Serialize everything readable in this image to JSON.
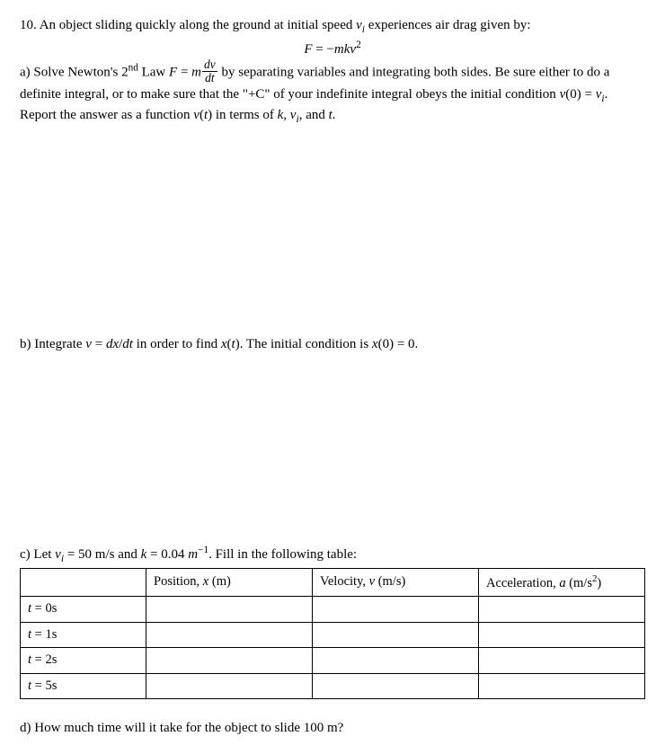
{
  "problem": {
    "number": "10.",
    "intro_html": "An object sliding quickly along the ground at initial speed <span class='ital'>v<sub>i</sub></span> experiences air drag given by:",
    "equation_html": "<span class='ital'>F</span> = &minus;<span class='ital'>mkv</span><sup>2</sup>"
  },
  "part_a": {
    "html": "a) Solve Newton's 2<sup>nd</sup> Law <span class='ital'>F</span> = <span class='ital'>m</span><span class='frac'><span class='num'><span class='ital'>dv</span></span><span class='den'><span class='ital'>dt</span></span></span> by separating variables and integrating both sides. Be sure either to do a definite integral, or to make sure that the \"+C\" of your indefinite integral obeys the initial condition <span class='ital'>v</span>(0) = <span class='ital'>v<sub>i</sub></span>. Report the answer as a function <span class='ital'>v</span>(<span class='ital'>t</span>) in terms of <span class='ital'>k</span>, <span class='ital'>v<sub>i</sub></span>, and <span class='ital'>t</span>."
  },
  "part_b": {
    "html": "b) Integrate <span class='ital'>v</span> = <span class='ital'>dx</span>/<span class='ital'>dt</span> in order to find <span class='ital'>x</span>(<span class='ital'>t</span>). The initial condition is <span class='ital'>x</span>(0) = 0."
  },
  "part_c": {
    "lead_html": "c) Let <span class='ital'>v<sub>i</sub></span> = 50 m/s and <span class='ital'>k</span> = 0.04 <span class='ital'>m</span><sup>&minus;1</sup>. Fill in the following table:",
    "headers": {
      "blank": "",
      "pos_html": "Position, <span class='ital'>x</span> (m)",
      "vel_html": "Velocity, <span class='ital'>v</span> (m/s)",
      "acc_html": "Acceleration, <span class='ital'>a</span> (m/s<sup>2</sup>)"
    },
    "rows": [
      {
        "t_html": "<span class='ital'>t</span> = 0s",
        "pos": "",
        "vel": "",
        "acc": ""
      },
      {
        "t_html": "<span class='ital'>t</span> = 1s",
        "pos": "",
        "vel": "",
        "acc": ""
      },
      {
        "t_html": "<span class='ital'>t</span> = 2s",
        "pos": "",
        "vel": "",
        "acc": ""
      },
      {
        "t_html": "<span class='ital'>t</span> = 5s",
        "pos": "",
        "vel": "",
        "acc": ""
      }
    ]
  },
  "part_d": {
    "text": "d) How much time will it take for the object to slide 100 m?"
  }
}
